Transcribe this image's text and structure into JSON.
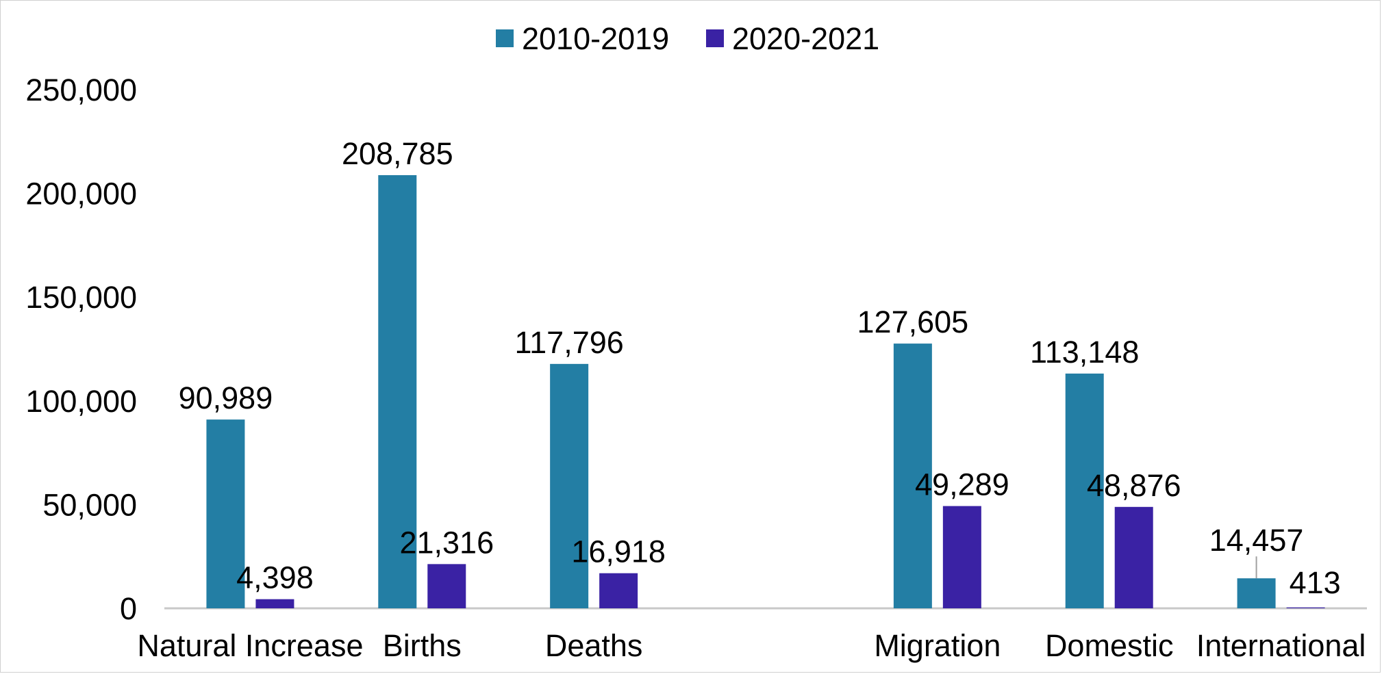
{
  "chart_data": {
    "type": "bar",
    "categories": [
      "Natural Increase",
      "Births",
      "Deaths",
      "",
      "Migration",
      "Domestic",
      "International"
    ],
    "series": [
      {
        "name": "2010-2019",
        "color": "#237ea4",
        "values": [
          90989,
          208785,
          117796,
          null,
          127605,
          113148,
          14457
        ],
        "labels": [
          "90,989",
          "208,785",
          "117,796",
          "",
          "127,605",
          "113,148",
          "14,457"
        ]
      },
      {
        "name": "2020-2021",
        "color": "#3a22a4",
        "values": [
          4398,
          21316,
          16918,
          null,
          49289,
          48876,
          413
        ],
        "labels": [
          "4,398",
          "21,316",
          "16,918",
          "",
          "49,289",
          "48,876",
          "413"
        ]
      }
    ],
    "yticks": [
      "0",
      "50,000",
      "100,000",
      "150,000",
      "200,000",
      "250,000"
    ],
    "ylim": [
      0,
      250000
    ],
    "legend_position": "top",
    "grid": false
  }
}
